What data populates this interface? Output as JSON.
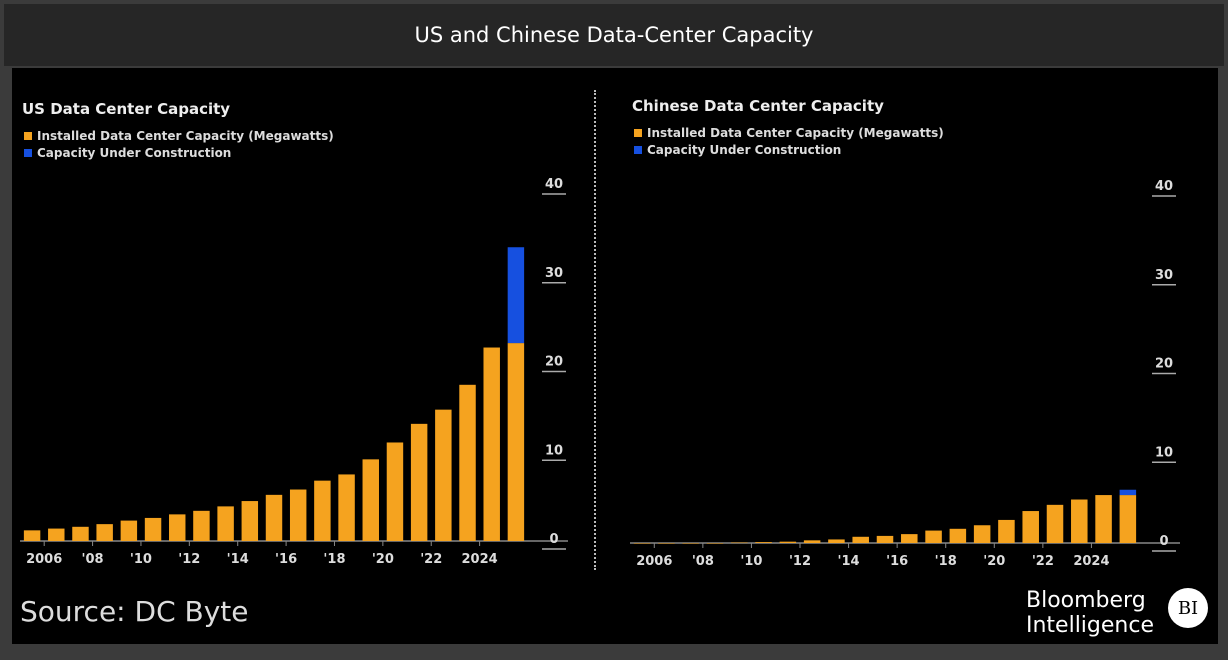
{
  "title": "US and Chinese Data-Center Capacity",
  "source": "Source: DC Byte",
  "logo": {
    "line1": "Bloomberg",
    "line2": "Intelligence",
    "badge": "BI"
  },
  "colors": {
    "installed": "#f5a31f",
    "construction": "#1650e0"
  },
  "chart_data": [
    {
      "type": "bar",
      "stacked": true,
      "title": "US Data Center Capacity",
      "xlabel": "",
      "ylabel": "",
      "ylim": [
        0,
        40
      ],
      "yticks": [
        0,
        10,
        20,
        30,
        40
      ],
      "legend": [
        "Installed Data Center Capacity (Megawatts)",
        "Capacity Under Construction"
      ],
      "x": [
        2005,
        2006,
        2007,
        2008,
        2009,
        2010,
        2011,
        2012,
        2013,
        2014,
        2015,
        2016,
        2017,
        2018,
        2019,
        2020,
        2021,
        2022,
        2023,
        2024,
        2025
      ],
      "xtick_labels": {
        "2006": "2006",
        "2008": "'08",
        "2010": "'10",
        "2012": "'12",
        "2014": "'14",
        "2016": "'16",
        "2018": "'18",
        "2020": "'20",
        "2022": "'22",
        "2024": "2024"
      },
      "series": [
        {
          "name": "Installed Data Center Capacity (Megawatts)",
          "values": [
            1.2,
            1.4,
            1.6,
            1.9,
            2.3,
            2.6,
            3.0,
            3.4,
            3.9,
            4.5,
            5.2,
            5.8,
            6.8,
            7.5,
            9.2,
            11.1,
            13.2,
            14.8,
            17.6,
            21.8,
            22.3
          ]
        },
        {
          "name": "Capacity Under Construction",
          "values": [
            0,
            0,
            0,
            0,
            0,
            0,
            0,
            0,
            0,
            0,
            0,
            0,
            0,
            0,
            0,
            0,
            0,
            0,
            0,
            0,
            10.8
          ]
        }
      ]
    },
    {
      "type": "bar",
      "stacked": true,
      "title": "Chinese Data Center Capacity",
      "xlabel": "",
      "ylabel": "",
      "ylim": [
        0,
        40
      ],
      "yticks": [
        0,
        10,
        20,
        30,
        40
      ],
      "legend": [
        "Installed Data Center Capacity (Megawatts)",
        "Capacity Under Construction"
      ],
      "x": [
        2005,
        2006,
        2007,
        2008,
        2009,
        2010,
        2011,
        2012,
        2013,
        2014,
        2015,
        2016,
        2017,
        2018,
        2019,
        2020,
        2021,
        2022,
        2023,
        2024,
        2025
      ],
      "xtick_labels": {
        "2006": "2006",
        "2008": "'08",
        "2010": "'10",
        "2012": "'12",
        "2014": "'14",
        "2016": "'16",
        "2018": "'18",
        "2020": "'20",
        "2022": "'22",
        "2024": "2024"
      },
      "series": [
        {
          "name": "Installed Data Center Capacity (Megawatts)",
          "values": [
            0,
            0,
            0,
            0,
            0.05,
            0.1,
            0.15,
            0.3,
            0.4,
            0.7,
            0.8,
            1.0,
            1.4,
            1.6,
            2.0,
            2.6,
            3.6,
            4.3,
            4.9,
            5.4,
            5.4
          ]
        },
        {
          "name": "Capacity Under Construction",
          "values": [
            0,
            0,
            0,
            0,
            0,
            0,
            0,
            0,
            0,
            0,
            0,
            0,
            0,
            0,
            0,
            0,
            0,
            0,
            0,
            0,
            0.6
          ]
        }
      ]
    }
  ]
}
